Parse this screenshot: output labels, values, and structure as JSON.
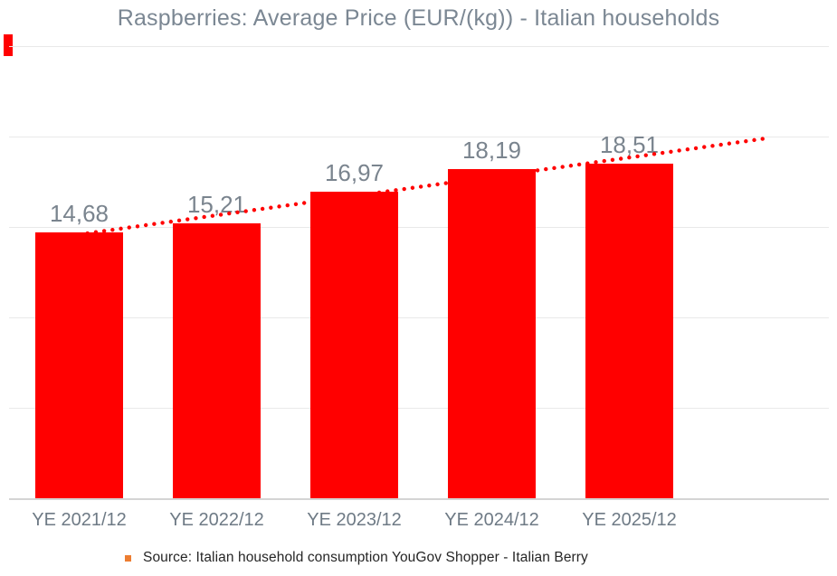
{
  "title": "Raspberries: Average Price (EUR/(kg)) - Italian households",
  "source": {
    "text": "Source: Italian household consumption YouGov Shopper - Italian Berry"
  },
  "colors": {
    "background": "#FFFFFF",
    "bar": "#FF0000",
    "trendline": "#FF0000",
    "stray_marker": "#FF0000",
    "title_text": "#7B8793",
    "value_label_text": "#7A848E",
    "axis_label_text": "#6E7A85",
    "gridline": "#E9E9E9",
    "axis_line": "#D4D4D4",
    "source_text": "#262626",
    "source_bullet": "#ED7D31"
  },
  "chart_data": {
    "type": "bar",
    "title": "Raspberries: Average Price (EUR/(kg)) - Italian households",
    "categories": [
      "YE 2021/12",
      "YE 2022/12",
      "YE 2023/12",
      "YE 2024/12",
      "YE 2025/12"
    ],
    "values": [
      14.68,
      15.21,
      16.97,
      18.19,
      18.51
    ],
    "value_labels": [
      "14,68",
      "15,21",
      "16,97",
      "18,19",
      "18,51"
    ],
    "xlabel": "",
    "ylabel": "",
    "ylim": [
      0,
      25
    ],
    "gridline_step": 5,
    "grid": "horizontal",
    "legend": "none",
    "y_tick_labels_visible": false,
    "trendline": {
      "type": "linear",
      "style": "dotted",
      "forecast_periods": 1
    },
    "source_note": "Source: Italian household consumption YouGov Shopper - Italian Berry"
  }
}
